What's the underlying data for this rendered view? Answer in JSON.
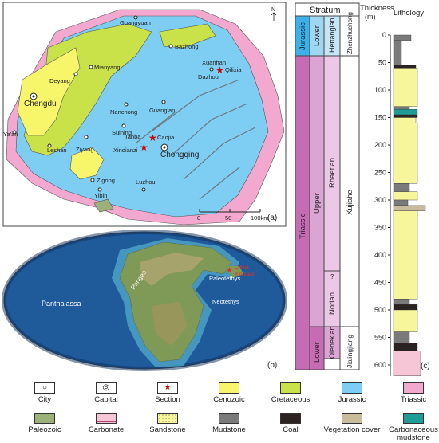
{
  "panel_a": {
    "label": "(a)",
    "north": "N",
    "cities": [
      "Guangyuan",
      "Bazhong",
      "Mianyang",
      "Deyang",
      "Dazhou",
      "Xuanhan",
      "Nanchong",
      "Guang'an",
      "Suining",
      "Ziyang",
      "Leshan",
      "Zigong",
      "Yibin",
      "Luzhou",
      "Ya'an",
      "Tanba"
    ],
    "capital": "Chengdu",
    "capital2": "Chongqing",
    "sections": [
      "Qilixia",
      "Xindianzi",
      "Caojia"
    ],
    "scale": [
      "0",
      "50",
      "100km"
    ]
  },
  "panel_b": {
    "label": "(b)",
    "oceans": [
      "Panthalassa",
      "Paleotethys",
      "Neotethys"
    ],
    "continent": "Pangea",
    "sections": [
      "Qilixia",
      "Xindianzi"
    ]
  },
  "panel_c": {
    "label": "(c)",
    "stratum_title": "Stratum",
    "thickness_title": "Thickness",
    "thickness_unit": "(m)",
    "lithology_title": "Lithology",
    "system_jurassic": "Jurassic",
    "system_triassic": "Triassic",
    "series_lower_j": "Lower",
    "series_upper": "Upper",
    "series_lower_t": "Lower",
    "stage_hettangian": "Hettangian",
    "stage_rhaetian": "Rhaetian",
    "stage_norian": "Norian",
    "stage_olenekian": "Olenekian",
    "stage_q": "?",
    "fm_zhenzhuchong": "Zhenzhuchong",
    "fm_xujiahe": "Xujiahe",
    "fm_jialingjiang": "Jialingjiang",
    "depth_ticks": [
      "0",
      "50",
      "100",
      "150",
      "200",
      "250",
      "300",
      "350",
      "400",
      "450",
      "500",
      "550",
      "600"
    ]
  },
  "legend": {
    "items": [
      {
        "label": "City",
        "key": "city"
      },
      {
        "label": "Capital",
        "key": "capital"
      },
      {
        "label": "Section",
        "key": "section"
      },
      {
        "label": "Cenozoic",
        "key": "cenozoic",
        "color": "#f7f56a"
      },
      {
        "label": "Cretaceous",
        "key": "cretaceous",
        "color": "#c9e24a"
      },
      {
        "label": "Jurassic",
        "key": "jurassic",
        "color": "#7ecdf2"
      },
      {
        "label": "Triassic",
        "key": "triassic",
        "color": "#f3a9cf"
      },
      {
        "label": "Paleozoic",
        "key": "paleozoic",
        "color": "#9cb07a"
      },
      {
        "label": "Carbonate",
        "key": "carbonate",
        "color": "#f6c6d6"
      },
      {
        "label": "Sandstone",
        "key": "sandstone",
        "color": "#f8f69a"
      },
      {
        "label": "Mudstone",
        "key": "mudstone",
        "color": "#7a7a7a"
      },
      {
        "label": "Coal",
        "key": "coal",
        "color": "#2b2222"
      },
      {
        "label": "Vegetation cover",
        "key": "vegetation",
        "color": "#c9bc9c"
      },
      {
        "label": "Carbonaceous mudstone",
        "key": "carbmud",
        "color": "#1f9c96"
      }
    ]
  }
}
